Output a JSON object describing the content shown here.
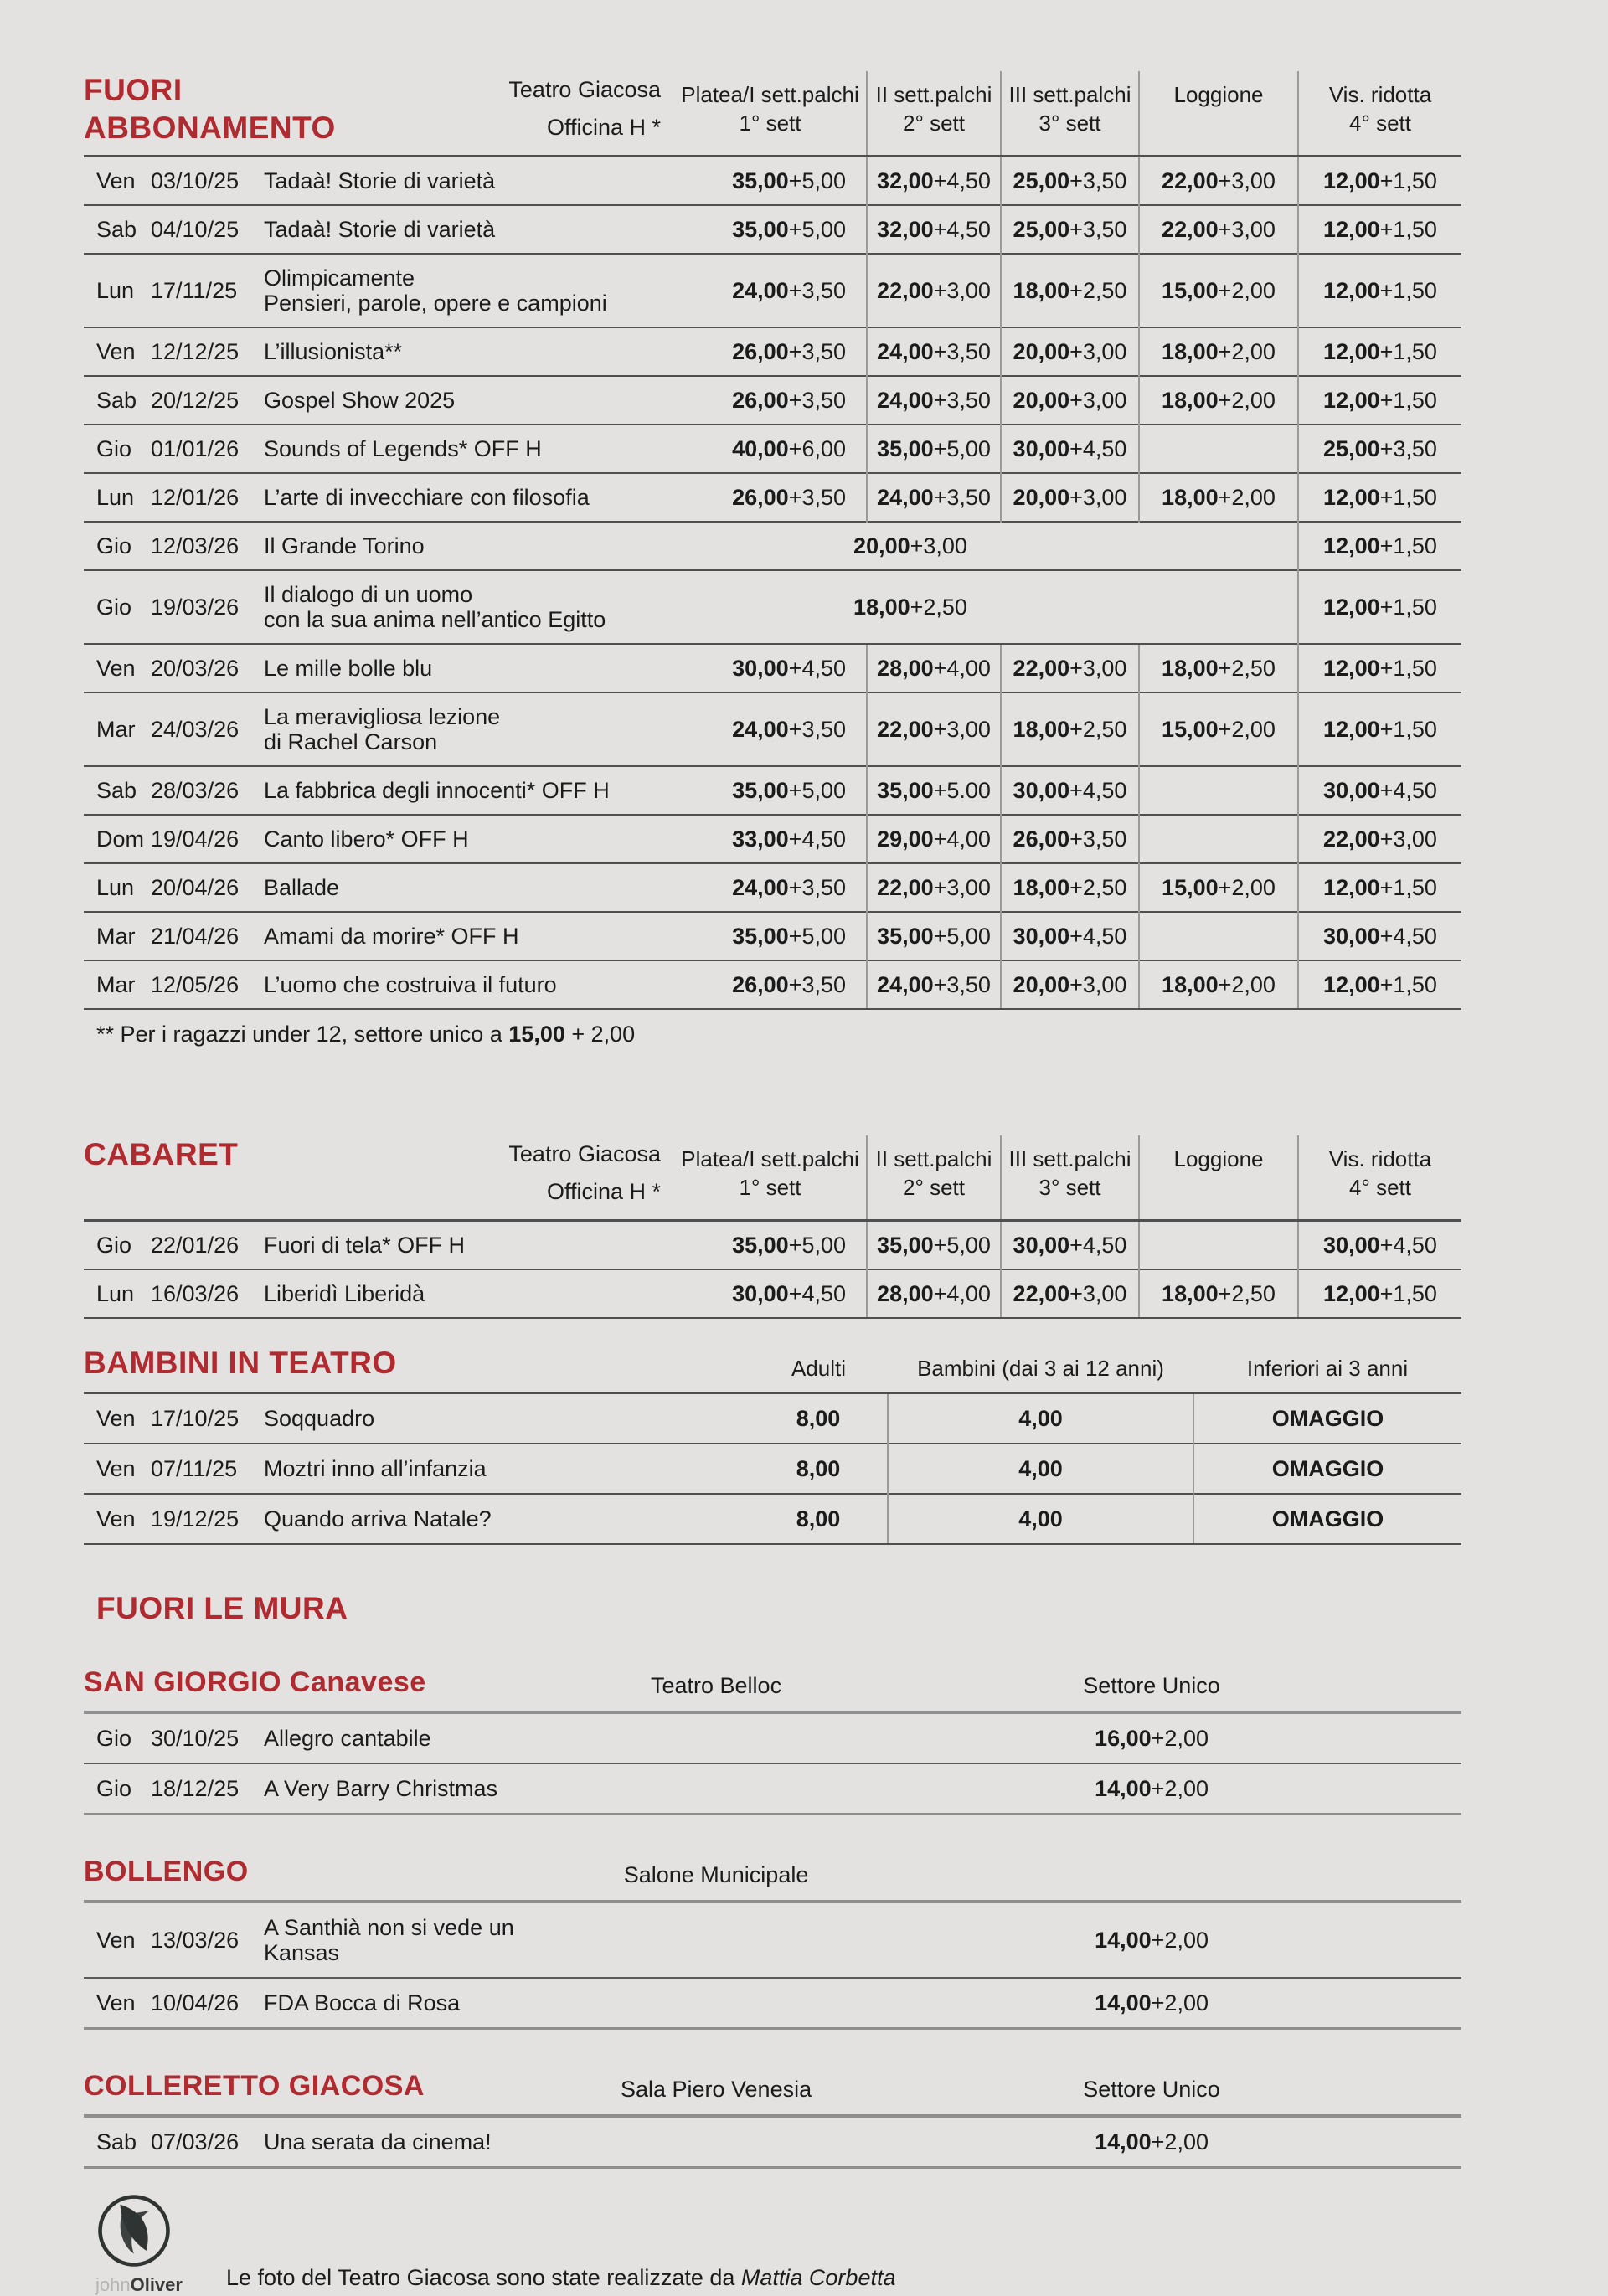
{
  "colors": {
    "accent": "#b02a30",
    "background": "#e3e2e0",
    "text": "#1b1b1b",
    "divider_gray": "#9a9a9a",
    "rule_dark": "#4f4f4f"
  },
  "main_tables": [
    {
      "id": "fuori-abbonamento",
      "title_lines": [
        "FUORI",
        "ABBONAMENTO"
      ],
      "venue_lines": [
        "Teatro Giacosa",
        "Officina H *"
      ],
      "col_headers": [
        {
          "line1": "Platea/I sett.palchi",
          "line2": "1° sett"
        },
        {
          "line1": "II sett.palchi",
          "line2": "2° sett"
        },
        {
          "line1": "III sett.palchi",
          "line2": "3° sett"
        },
        {
          "line1": "Loggione",
          "line2": ""
        },
        {
          "line1": "Vis. ridotta",
          "line2": "4° sett"
        }
      ],
      "rows": [
        {
          "day": "Ven",
          "date": "03/10/25",
          "title": [
            "Tadaà! Storie di varietà"
          ],
          "prices": [
            "35,00+5,00",
            "32,00+4,50",
            "25,00+3,50",
            "22,00+3,00",
            "12,00+1,50"
          ]
        },
        {
          "day": "Sab",
          "date": "04/10/25",
          "title": [
            "Tadaà! Storie di varietà"
          ],
          "prices": [
            "35,00+5,00",
            "32,00+4,50",
            "25,00+3,50",
            "22,00+3,00",
            "12,00+1,50"
          ]
        },
        {
          "day": "Lun",
          "date": "17/11/25",
          "title": [
            "Olimpicamente",
            "Pensieri, parole, opere e campioni"
          ],
          "prices": [
            "24,00+3,50",
            "22,00+3,00",
            "18,00+2,50",
            "15,00+2,00",
            "12,00+1,50"
          ]
        },
        {
          "day": "Ven",
          "date": "12/12/25",
          "title": [
            "L’illusionista**"
          ],
          "prices": [
            "26,00+3,50",
            "24,00+3,50",
            "20,00+3,00",
            "18,00+2,00",
            "12,00+1,50"
          ]
        },
        {
          "day": "Sab",
          "date": "20/12/25",
          "title": [
            "Gospel Show 2025"
          ],
          "prices": [
            "26,00+3,50",
            "24,00+3,50",
            "20,00+3,00",
            "18,00+2,00",
            "12,00+1,50"
          ]
        },
        {
          "day": "Gio",
          "date": "01/01/26",
          "title": [
            "Sounds of Legends* OFF H"
          ],
          "prices": [
            "40,00+6,00",
            "35,00+5,00",
            "30,00+4,50",
            "",
            "25,00+3,50"
          ]
        },
        {
          "day": "Lun",
          "date": "12/01/26",
          "title": [
            "L’arte di invecchiare con filosofia"
          ],
          "prices": [
            "26,00+3,50",
            "24,00+3,50",
            "20,00+3,00",
            "18,00+2,00",
            "12,00+1,50"
          ]
        },
        {
          "day": "Gio",
          "date": "12/03/26",
          "title": [
            "Il Grande Torino"
          ],
          "span_price": "20,00+3,00",
          "vis_price": "12,00+1,50"
        },
        {
          "day": "Gio",
          "date": "19/03/26",
          "title": [
            "Il dialogo di un uomo",
            "con la sua anima nell’antico Egitto"
          ],
          "span_price": "18,00+2,50",
          "vis_price": "12,00+1,50"
        },
        {
          "day": "Ven",
          "date": "20/03/26",
          "title": [
            "Le mille bolle blu"
          ],
          "prices": [
            "30,00+4,50",
            "28,00+4,00",
            "22,00+3,00",
            "18,00+2,50",
            "12,00+1,50"
          ]
        },
        {
          "day": "Mar",
          "date": "24/03/26",
          "title": [
            "La meravigliosa lezione",
            "di Rachel Carson"
          ],
          "prices": [
            "24,00+3,50",
            "22,00+3,00",
            "18,00+2,50",
            "15,00+2,00",
            "12,00+1,50"
          ]
        },
        {
          "day": "Sab",
          "date": "28/03/26",
          "title": [
            "La fabbrica degli innocenti* OFF H"
          ],
          "prices": [
            "35,00+5,00",
            "35,00+5.00",
            "30,00+4,50",
            "",
            "30,00+4,50"
          ]
        },
        {
          "day": "Dom",
          "date": "19/04/26",
          "title": [
            "Canto libero* OFF H"
          ],
          "prices": [
            "33,00+4,50",
            "29,00+4,00",
            "26,00+3,50",
            "",
            "22,00+3,00"
          ]
        },
        {
          "day": "Lun",
          "date": "20/04/26",
          "title": [
            "Ballade"
          ],
          "prices": [
            "24,00+3,50",
            "22,00+3,00",
            "18,00+2,50",
            "15,00+2,00",
            "12,00+1,50"
          ]
        },
        {
          "day": "Mar",
          "date": "21/04/26",
          "title": [
            "Amami da morire* OFF H"
          ],
          "prices": [
            "35,00+5,00",
            "35,00+5,00",
            "30,00+4,50",
            "",
            "30,00+4,50"
          ]
        },
        {
          "day": "Mar",
          "date": "12/05/26",
          "title": [
            "L’uomo che costruiva il futuro"
          ],
          "prices": [
            "26,00+3,50",
            "24,00+3,50",
            "20,00+3,00",
            "18,00+2,00",
            "12,00+1,50"
          ]
        }
      ],
      "footnote_segments": [
        "** Per i ragazzi under 12, settore unico a ",
        "15,00",
        " + 2,00"
      ]
    },
    {
      "id": "cabaret",
      "title_lines": [
        "CABARET"
      ],
      "venue_lines": [
        "Teatro Giacosa",
        "Officina H *"
      ],
      "col_headers": [
        {
          "line1": "Platea/I sett.palchi",
          "line2": "1° sett"
        },
        {
          "line1": "II sett.palchi",
          "line2": "2° sett"
        },
        {
          "line1": "III sett.palchi",
          "line2": "3° sett"
        },
        {
          "line1": "Loggione",
          "line2": ""
        },
        {
          "line1": "Vis. ridotta",
          "line2": "4° sett"
        }
      ],
      "rows": [
        {
          "day": "Gio",
          "date": "22/01/26",
          "title": [
            "Fuori di tela* OFF H"
          ],
          "prices": [
            "35,00+5,00",
            "35,00+5,00",
            "30,00+4,50",
            "",
            "30,00+4,50"
          ]
        },
        {
          "day": "Lun",
          "date": "16/03/26",
          "title": [
            "Liberidì Liberidà"
          ],
          "prices": [
            "30,00+4,50",
            "28,00+4,00",
            "22,00+3,00",
            "18,00+2,50",
            "12,00+1,50"
          ]
        }
      ]
    }
  ],
  "bambini": {
    "title": "BAMBINI IN TEATRO",
    "col_headers": [
      "Adulti",
      "Bambini (dai 3 ai 12 anni)",
      "Inferiori ai  3 anni"
    ],
    "rows": [
      {
        "day": "Ven",
        "date": "17/10/25",
        "title": "Soqquadro",
        "values": [
          "8,00",
          "4,00",
          "OMAGGIO"
        ]
      },
      {
        "day": "Ven",
        "date": "07/11/25",
        "title": "Moztri inno all’infanzia",
        "values": [
          "8,00",
          "4,00",
          "OMAGGIO"
        ]
      },
      {
        "day": "Ven",
        "date": "19/12/25",
        "title": "Quando arriva Natale?",
        "values": [
          "8,00",
          "4,00",
          "OMAGGIO"
        ]
      }
    ]
  },
  "fuori_le_mura": {
    "title": "FUORI LE MURA",
    "venues": [
      {
        "id": "san-giorgio",
        "title": "SAN GIORGIO Canavese",
        "venue": "Teatro Belloc",
        "sector_label": "Settore Unico",
        "rows": [
          {
            "day": "Gio",
            "date": "30/10/25",
            "title": "Allegro cantabile",
            "price": "16,00+2,00"
          },
          {
            "day": "Gio",
            "date": "18/12/25",
            "title": "A Very Barry Christmas",
            "price": "14,00+2,00"
          }
        ]
      },
      {
        "id": "bollengo",
        "title": "BOLLENGO",
        "venue": "Salone Municipale",
        "sector_label": "",
        "rows": [
          {
            "day": "Ven",
            "date": "13/03/26",
            "title": "A Santhià non si vede un Kansas",
            "price": "14,00+2,00"
          },
          {
            "day": "Ven",
            "date": "10/04/26",
            "title": "FDA Bocca di Rosa",
            "price": "14,00+2,00"
          }
        ]
      },
      {
        "id": "colleretto-giacosa",
        "title": "COLLERETTO GIACOSA",
        "venue": "Sala Piero Venesia",
        "sector_label": "Settore Unico",
        "rows": [
          {
            "day": "Sab",
            "date": "07/03/26",
            "title": "Una serata da cinema!",
            "price": "14,00+2,00"
          }
        ]
      }
    ]
  },
  "footer": {
    "logo_text_light": "john",
    "logo_text_bold": "Oliver",
    "caption_prefix": "Le foto del Teatro Giacosa sono state realizzate da ",
    "caption_italic": "Mattia Corbetta"
  }
}
